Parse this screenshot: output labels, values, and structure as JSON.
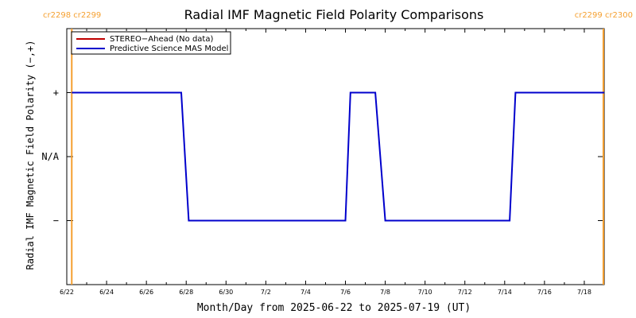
{
  "chart_data": {
    "type": "line",
    "title": "Radial IMF Magnetic Field Polarity Comparisons",
    "xlabel": "Month/Day from 2025-06-22 to 2025-07-19 (UT)",
    "ylabel": "Radial IMF Magnetic Field Polarity (−,+)",
    "x_range": [
      "2025-06-22",
      "2025-07-19"
    ],
    "x_ticks": [
      "6/22",
      "6/24",
      "6/26",
      "6/28",
      "6/30",
      "7/2",
      "7/4",
      "7/6",
      "7/8",
      "7/10",
      "7/12",
      "7/14",
      "7/16",
      "7/18"
    ],
    "y_ticks": [
      "+",
      "N/A",
      "−"
    ],
    "y_levels": {
      "+": 1,
      "N/A": 0,
      "−": -1
    },
    "ylim": [
      -2,
      2
    ],
    "legend": [
      {
        "name": "STEREO−Ahead (No data)",
        "color": "#c00000"
      },
      {
        "name": "Predictive Science MAS Model",
        "color": "#0000cc"
      }
    ],
    "legend_position": "top-left",
    "series": [
      {
        "name": "STEREO−Ahead (No data)",
        "color": "#c00000",
        "points": []
      },
      {
        "name": "Predictive Science MAS Model",
        "color": "#0000cc",
        "points": [
          {
            "x": "2025-06-22T06:00",
            "y": 1
          },
          {
            "x": "2025-06-27T18:00",
            "y": 1
          },
          {
            "x": "2025-06-28T03:00",
            "y": -1
          },
          {
            "x": "2025-07-06T00:00",
            "y": -1
          },
          {
            "x": "2025-07-06T06:00",
            "y": 1
          },
          {
            "x": "2025-07-07T12:00",
            "y": 1
          },
          {
            "x": "2025-07-08T00:00",
            "y": -1
          },
          {
            "x": "2025-07-14T06:00",
            "y": -1
          },
          {
            "x": "2025-07-14T13:00",
            "y": 1
          },
          {
            "x": "2025-07-19T00:00",
            "y": 1
          }
        ]
      }
    ],
    "rotation_markers": [
      {
        "x": "2025-06-22T06:00",
        "color": "#f5a030",
        "label": "cr2298 cr2299",
        "align": "left"
      },
      {
        "x": "2025-07-18T23:00",
        "color": "#f5a030",
        "label": "cr2299 cr2300",
        "align": "right"
      }
    ]
  }
}
